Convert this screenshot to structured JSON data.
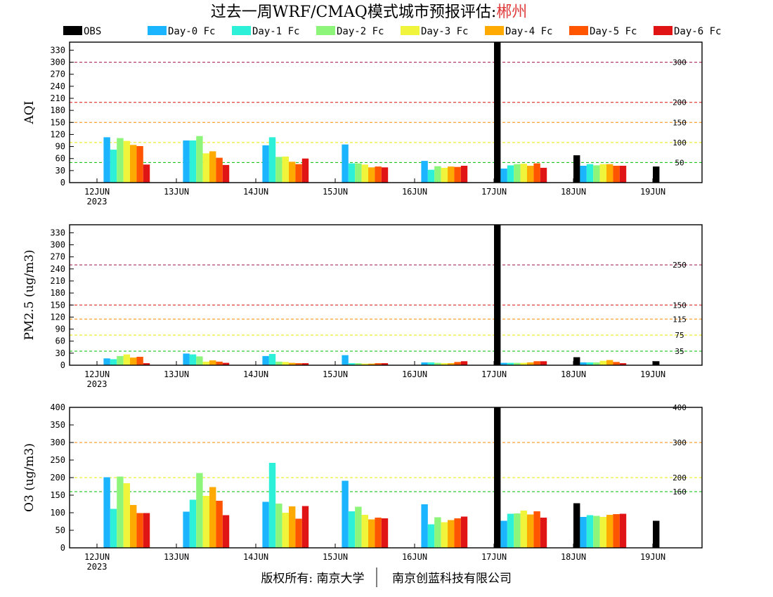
{
  "title": {
    "prefix": "过去一周WRF/CMAQ模式城市预报评估:",
    "city": "郴州",
    "city_color": "#e03c3c"
  },
  "footer": {
    "left": "版权所有: 南京大学",
    "right": "南京创蓝科技有限公司"
  },
  "legend": [
    {
      "name": "OBS",
      "color": "#000000"
    },
    {
      "name": "Day-0 Fc",
      "color": "#1ab4ff"
    },
    {
      "name": "Day-1 Fc",
      "color": "#2cf0d8"
    },
    {
      "name": "Day-2 Fc",
      "color": "#8cf57a"
    },
    {
      "name": "Day-3 Fc",
      "color": "#f0f53c"
    },
    {
      "name": "Day-4 Fc",
      "color": "#ffaa00"
    },
    {
      "name": "Day-5 Fc",
      "color": "#ff5500"
    },
    {
      "name": "Day-6 Fc",
      "color": "#e01414"
    }
  ],
  "chart_data": [
    {
      "type": "bar",
      "ylabel": "AQI",
      "ylim": [
        0,
        350
      ],
      "yticks": [
        0,
        30,
        60,
        90,
        120,
        150,
        180,
        210,
        240,
        270,
        300,
        330
      ],
      "categories": [
        "12JUN",
        "13JUN",
        "14JUN",
        "15JUN",
        "16JUN",
        "17JUN",
        "18JUN",
        "19JUN"
      ],
      "year_label": "2023",
      "ref_lines": [
        {
          "value": 300,
          "label": "300",
          "color": "#a0104a"
        },
        {
          "value": 200,
          "label": "200",
          "color": "#dd1010"
        },
        {
          "value": 150,
          "label": "150",
          "color": "#ff8800"
        },
        {
          "value": 100,
          "label": "100",
          "color": "#e8e800"
        },
        {
          "value": 50,
          "label": "50",
          "color": "#00bb00"
        }
      ],
      "series": [
        {
          "name": "OBS",
          "values": [
            null,
            null,
            null,
            null,
            null,
            350,
            68,
            40
          ]
        },
        {
          "name": "Day-0 Fc",
          "values": [
            113,
            105,
            93,
            95,
            54,
            35,
            42,
            null
          ]
        },
        {
          "name": "Day-1 Fc",
          "values": [
            82,
            105,
            113,
            48,
            32,
            43,
            46,
            null
          ]
        },
        {
          "name": "Day-2 Fc",
          "values": [
            111,
            116,
            64,
            48,
            41,
            46,
            43,
            null
          ]
        },
        {
          "name": "Day-3 Fc",
          "values": [
            104,
            73,
            65,
            45,
            37,
            47,
            46,
            null
          ]
        },
        {
          "name": "Day-4 Fc",
          "values": [
            94,
            78,
            52,
            38,
            40,
            42,
            46,
            null
          ]
        },
        {
          "name": "Day-5 Fc",
          "values": [
            91,
            62,
            46,
            40,
            39,
            48,
            42,
            null
          ]
        },
        {
          "name": "Day-6 Fc",
          "values": [
            45,
            44,
            60,
            38,
            42,
            37,
            42,
            null
          ]
        }
      ]
    },
    {
      "type": "bar",
      "ylabel": "PM2.5 (ug/m3)",
      "ylim": [
        0,
        350
      ],
      "yticks": [
        0,
        30,
        60,
        90,
        120,
        150,
        180,
        210,
        240,
        270,
        300,
        330
      ],
      "categories": [
        "12JUN",
        "13JUN",
        "14JUN",
        "15JUN",
        "16JUN",
        "17JUN",
        "18JUN",
        "19JUN"
      ],
      "year_label": "2023",
      "ref_lines": [
        {
          "value": 250,
          "label": "250",
          "color": "#a0104a"
        },
        {
          "value": 150,
          "label": "150",
          "color": "#dd1010"
        },
        {
          "value": 115,
          "label": "115",
          "color": "#ff8800"
        },
        {
          "value": 75,
          "label": "75",
          "color": "#e8e800"
        },
        {
          "value": 35,
          "label": "35",
          "color": "#00bb00"
        }
      ],
      "series": [
        {
          "name": "OBS",
          "values": [
            null,
            null,
            null,
            null,
            null,
            350,
            20,
            10
          ]
        },
        {
          "name": "Day-0 Fc",
          "values": [
            17,
            29,
            23,
            25,
            7,
            6,
            7,
            null
          ]
        },
        {
          "name": "Day-1 Fc",
          "values": [
            15,
            27,
            28,
            5,
            7,
            6,
            7,
            null
          ]
        },
        {
          "name": "Day-2 Fc",
          "values": [
            23,
            22,
            9,
            5,
            6,
            6,
            7,
            null
          ]
        },
        {
          "name": "Day-3 Fc",
          "values": [
            27,
            9,
            8,
            4,
            5,
            6,
            11,
            null
          ]
        },
        {
          "name": "Day-4 Fc",
          "values": [
            19,
            12,
            6,
            4,
            5,
            7,
            13,
            null
          ]
        },
        {
          "name": "Day-5 Fc",
          "values": [
            21,
            9,
            5,
            5,
            8,
            10,
            8,
            null
          ]
        },
        {
          "name": "Day-6 Fc",
          "values": [
            5,
            6,
            5,
            5,
            10,
            10,
            5,
            null
          ]
        }
      ]
    },
    {
      "type": "bar",
      "ylabel": "O3 (ug/m3)",
      "ylim": [
        0,
        400
      ],
      "yticks": [
        0,
        50,
        100,
        150,
        200,
        250,
        300,
        350,
        400
      ],
      "categories": [
        "12JUN",
        "13JUN",
        "14JUN",
        "15JUN",
        "16JUN",
        "17JUN",
        "18JUN",
        "19JUN"
      ],
      "year_label": "2023",
      "ref_lines": [
        {
          "value": 400,
          "label": "400",
          "color": "#dd1010"
        },
        {
          "value": 300,
          "label": "300",
          "color": "#ff8800"
        },
        {
          "value": 200,
          "label": "200",
          "color": "#e8e800"
        },
        {
          "value": 160,
          "label": "160",
          "color": "#00bb00"
        }
      ],
      "series": [
        {
          "name": "OBS",
          "values": [
            null,
            null,
            null,
            null,
            null,
            400,
            127,
            77
          ]
        },
        {
          "name": "Day-0 Fc",
          "values": [
            201,
            103,
            131,
            191,
            124,
            77,
            88,
            null
          ]
        },
        {
          "name": "Day-1 Fc",
          "values": [
            111,
            137,
            242,
            104,
            67,
            97,
            93,
            null
          ]
        },
        {
          "name": "Day-2 Fc",
          "values": [
            203,
            213,
            126,
            117,
            87,
            98,
            91,
            null
          ]
        },
        {
          "name": "Day-3 Fc",
          "values": [
            184,
            148,
            100,
            94,
            73,
            106,
            88,
            null
          ]
        },
        {
          "name": "Day-4 Fc",
          "values": [
            122,
            173,
            118,
            81,
            79,
            95,
            94,
            null
          ]
        },
        {
          "name": "Day-5 Fc",
          "values": [
            99,
            134,
            83,
            86,
            84,
            104,
            96,
            null
          ]
        },
        {
          "name": "Day-6 Fc",
          "values": [
            99,
            93,
            119,
            84,
            89,
            86,
            97,
            null
          ]
        }
      ]
    }
  ]
}
